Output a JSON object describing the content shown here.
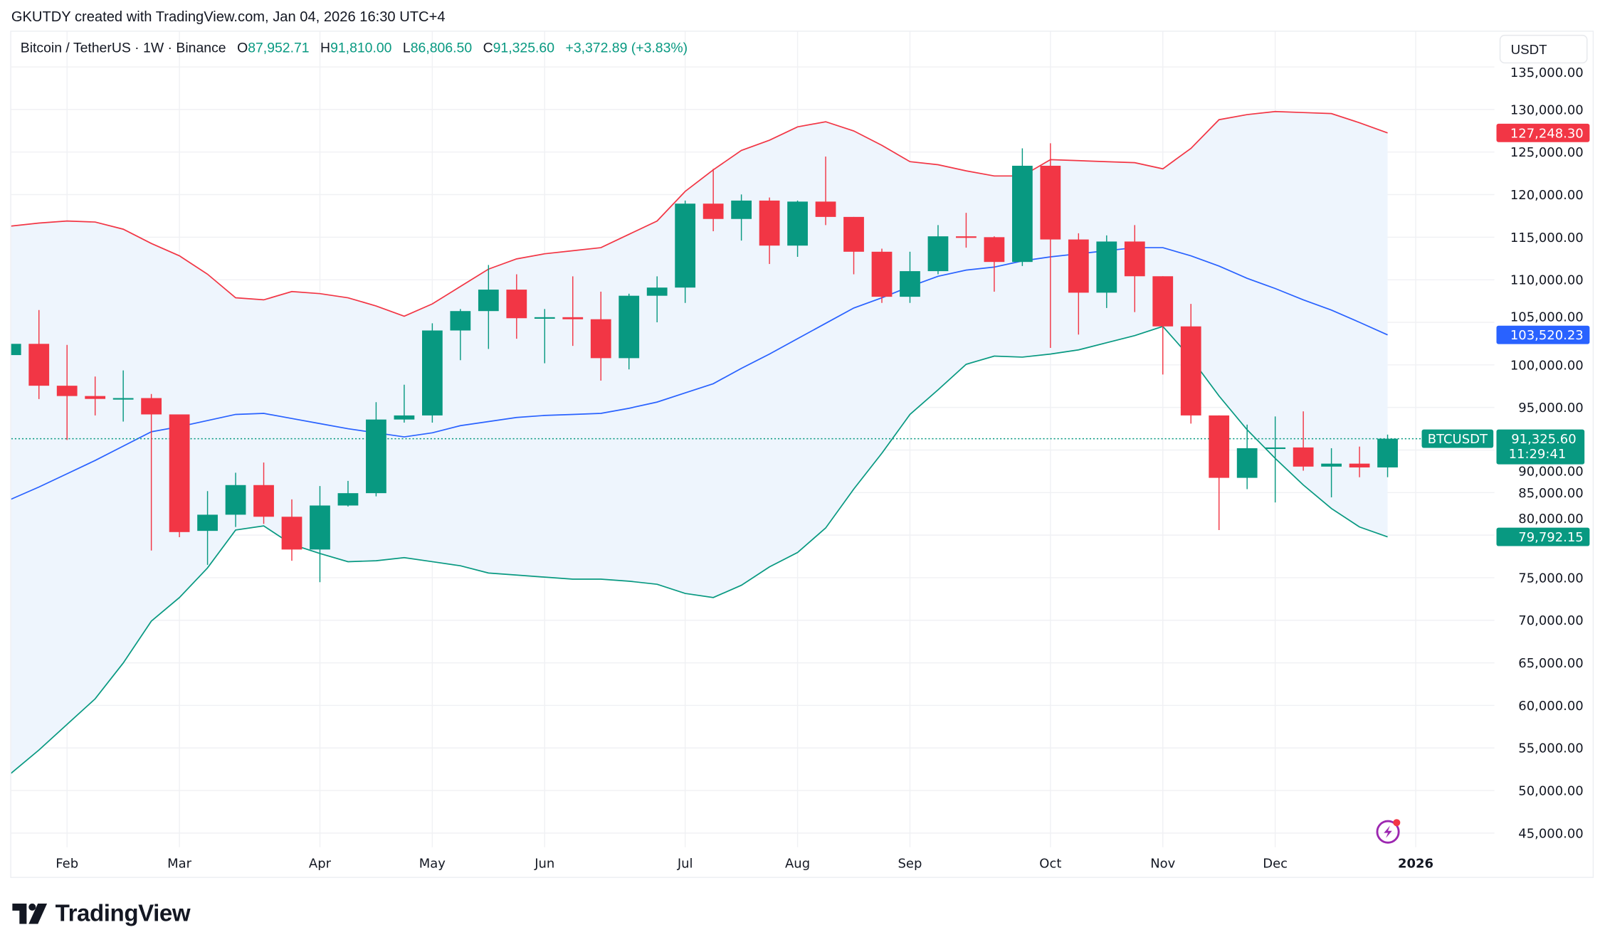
{
  "header": {
    "text": "GKUTDY created with TradingView.com, Jan 04, 2026 16:30 UTC+4"
  },
  "legend": {
    "symbol": "Bitcoin / TetherUS · 1W · Binance",
    "o_label": "O",
    "o_value": "87,952.71",
    "h_label": "H",
    "h_value": "91,810.00",
    "l_label": "L",
    "l_value": "86,806.50",
    "c_label": "C",
    "c_value": "91,325.60",
    "change": "+3,372.89 (+3.83%)"
  },
  "currency_button": "USDT",
  "logo": {
    "text": "TradingView"
  },
  "colors": {
    "up": "#089981",
    "down": "#f23645",
    "basis": "#2962ff",
    "upper": "#f23645",
    "lower": "#089981",
    "band_fill": "#eef5fd"
  },
  "chart_data": {
    "type": "candlestick",
    "interval": "1W",
    "ylim": [
      45000,
      135000
    ],
    "grid": true,
    "y_ticks": [
      "135,000.00",
      "130,000.00",
      "125,000.00",
      "120,000.00",
      "115,000.00",
      "110,000.00",
      "105,000.00",
      "100,000.00",
      "95,000.00",
      "90,000.00",
      "85,000.00",
      "80,000.00",
      "75,000.00",
      "70,000.00",
      "65,000.00",
      "60,000.00",
      "55,000.00",
      "50,000.00",
      "45,000.00"
    ],
    "x_ticks": [
      {
        "label": "Feb",
        "date": "2025-02-03"
      },
      {
        "label": "Mar",
        "date": "2025-03-03"
      },
      {
        "label": "Apr",
        "date": "2025-04-07"
      },
      {
        "label": "May",
        "date": "2025-05-05"
      },
      {
        "label": "Jun",
        "date": "2025-06-02"
      },
      {
        "label": "Jul",
        "date": "2025-07-07"
      },
      {
        "label": "Aug",
        "date": "2025-08-04"
      },
      {
        "label": "Sep",
        "date": "2025-09-01"
      },
      {
        "label": "Oct",
        "date": "2025-10-06"
      },
      {
        "label": "Nov",
        "date": "2025-11-03"
      },
      {
        "label": "Dec",
        "date": "2025-12-01"
      },
      {
        "label": "2026",
        "date": "2026-01-05"
      }
    ],
    "candles_columns": [
      "date",
      "open",
      "high",
      "low",
      "close"
    ],
    "candles": [
      [
        "2025-01-20",
        101150,
        102470,
        101150,
        102470
      ],
      [
        "2025-01-27",
        102470,
        106440,
        95980,
        97550
      ],
      [
        "2025-02-03",
        97550,
        102350,
        91180,
        96340
      ],
      [
        "2025-02-10",
        96340,
        98630,
        94060,
        96000
      ],
      [
        "2025-02-17",
        96000,
        99350,
        93340,
        96100
      ],
      [
        "2025-02-24",
        96100,
        96580,
        78190,
        94180
      ],
      [
        "2025-03-03",
        94180,
        94180,
        79760,
        80360
      ],
      [
        "2025-03-10",
        80500,
        85170,
        76510,
        82400
      ],
      [
        "2025-03-17",
        82400,
        87330,
        80960,
        85880
      ],
      [
        "2025-03-24",
        85880,
        88530,
        81320,
        82160
      ],
      [
        "2025-03-31",
        82160,
        84200,
        76990,
        78310
      ],
      [
        "2025-04-07",
        78310,
        85770,
        74470,
        83480
      ],
      [
        "2025-04-14",
        83480,
        86370,
        83360,
        84930
      ],
      [
        "2025-04-21",
        84930,
        95620,
        84560,
        93580
      ],
      [
        "2025-04-28",
        93580,
        97670,
        93220,
        94060
      ],
      [
        "2025-05-05",
        94060,
        104880,
        93220,
        104040
      ],
      [
        "2025-05-12",
        104040,
        106560,
        100550,
        106320
      ],
      [
        "2025-05-19",
        106320,
        111730,
        101870,
        108840
      ],
      [
        "2025-05-26",
        108840,
        110640,
        103070,
        105480
      ],
      [
        "2025-06-02",
        105480,
        106560,
        100190,
        105600
      ],
      [
        "2025-06-09",
        105600,
        110400,
        102230,
        105360
      ],
      [
        "2025-06-16",
        105360,
        108600,
        98150,
        100790
      ],
      [
        "2025-06-23",
        100790,
        108360,
        99470,
        108120
      ],
      [
        "2025-06-30",
        108120,
        110400,
        105000,
        109080
      ],
      [
        "2025-07-07",
        109080,
        119300,
        107280,
        118940
      ],
      [
        "2025-07-14",
        118940,
        123030,
        115700,
        117140
      ],
      [
        "2025-07-21",
        117140,
        120020,
        114600,
        119300
      ],
      [
        "2025-07-28",
        119300,
        119660,
        111850,
        114010
      ],
      [
        "2025-08-04",
        114010,
        119300,
        112690,
        119180
      ],
      [
        "2025-08-11",
        119180,
        124470,
        116420,
        117380
      ],
      [
        "2025-08-18",
        117380,
        117380,
        110640,
        113290
      ],
      [
        "2025-08-25",
        113290,
        113650,
        107280,
        108000
      ],
      [
        "2025-09-01",
        108000,
        113290,
        107280,
        111010
      ],
      [
        "2025-09-08",
        111010,
        116420,
        110640,
        115100
      ],
      [
        "2025-09-15",
        115100,
        117860,
        113770,
        115000
      ],
      [
        "2025-09-22",
        115000,
        115100,
        108600,
        112090
      ],
      [
        "2025-09-29",
        112090,
        125430,
        111610,
        123390
      ],
      [
        "2025-10-06",
        123390,
        126030,
        101990,
        114730
      ],
      [
        "2025-10-13",
        114730,
        115460,
        103560,
        108480
      ],
      [
        "2025-10-20",
        108480,
        115210,
        106680,
        114490
      ],
      [
        "2025-10-27",
        114490,
        116420,
        106200,
        110410
      ],
      [
        "2025-11-03",
        110410,
        110410,
        98870,
        104520
      ],
      [
        "2025-11-10",
        104520,
        107160,
        93100,
        94060
      ],
      [
        "2025-11-17",
        94060,
        94060,
        80600,
        86730
      ],
      [
        "2025-11-24",
        86730,
        92980,
        85400,
        90210
      ],
      [
        "2025-12-01",
        90210,
        93940,
        83840,
        90300
      ],
      [
        "2025-12-08",
        90300,
        94540,
        87570,
        88050
      ],
      [
        "2025-12-15",
        88050,
        90210,
        84440,
        88400
      ],
      [
        "2025-12-22",
        88400,
        90400,
        86800,
        87952.71
      ],
      [
        "2025-12-29",
        87952.71,
        91810.0,
        86806.5,
        91325.6
      ]
    ],
    "bollinger": {
      "upper": [
        116300,
        116660,
        116900,
        116780,
        115940,
        114260,
        112810,
        110650,
        107880,
        107640,
        108610,
        108370,
        107880,
        106920,
        105720,
        107160,
        109210,
        111250,
        112450,
        113050,
        113410,
        113770,
        115340,
        116900,
        120380,
        122910,
        125190,
        126390,
        127960,
        128560,
        127480,
        125790,
        123870,
        123510,
        122790,
        122190,
        122190,
        124110,
        123990,
        123870,
        123750,
        123030,
        125430,
        128800,
        129400,
        129760,
        129640,
        129520,
        128440,
        127248.3
      ],
      "basis": [
        84210,
        85650,
        87210,
        88770,
        90460,
        92140,
        92740,
        93460,
        94180,
        94300,
        93700,
        93100,
        92500,
        92020,
        91540,
        92020,
        92860,
        93340,
        93820,
        94060,
        94180,
        94300,
        94900,
        95630,
        96710,
        97790,
        99590,
        101270,
        103080,
        104880,
        106680,
        107880,
        109210,
        110410,
        111130,
        111490,
        112210,
        112690,
        113050,
        113410,
        113770,
        113770,
        112810,
        111610,
        110170,
        108970,
        107640,
        106440,
        105000,
        103520.23
      ],
      "lower": [
        52000,
        54760,
        57770,
        60770,
        64980,
        69900,
        72670,
        76150,
        80600,
        81080,
        78920,
        77840,
        76880,
        76990,
        77360,
        76880,
        76400,
        75550,
        75310,
        75070,
        74830,
        74830,
        74590,
        74230,
        73150,
        72670,
        74110,
        76270,
        77960,
        80840,
        85410,
        89620,
        94180,
        97070,
        100070,
        101030,
        100910,
        101270,
        101760,
        102600,
        103440,
        104520,
        100790,
        96350,
        92380,
        89020,
        85890,
        83130,
        80960,
        79792.15
      ],
      "upper_label": "127,248.30",
      "basis_label": "103,520.23",
      "lower_label": "79,792.15"
    },
    "last_price": 91325.6,
    "last_price_label": "91,325.60",
    "symbol_tag": "BTCUSDT",
    "countdown": "11:29:41"
  }
}
